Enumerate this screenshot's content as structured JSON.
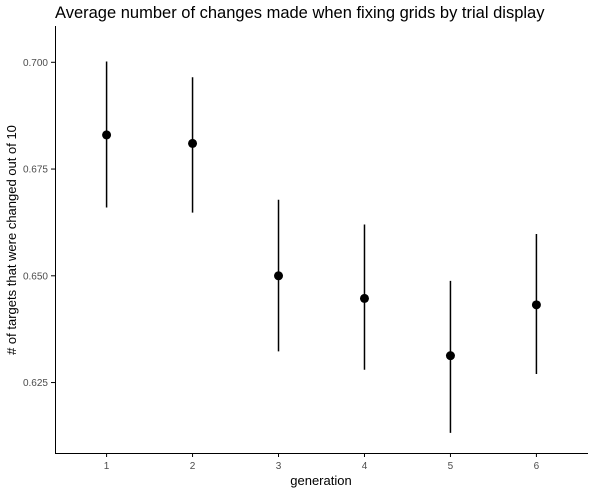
{
  "chart_data": {
    "type": "scatter",
    "title": "Average number of changes made when fixing grids by trial display",
    "xlabel": "generation",
    "ylabel": "# of targets that were changed out of 10",
    "x": [
      1,
      2,
      3,
      4,
      5,
      6
    ],
    "y": [
      0.683,
      0.681,
      0.65,
      0.6447,
      0.6313,
      0.6432
    ],
    "y_lower": [
      0.666,
      0.6648,
      0.6323,
      0.628,
      0.6132,
      0.627
    ],
    "y_upper": [
      0.7002,
      0.6965,
      0.6678,
      0.662,
      0.6488,
      0.6598
    ],
    "xlim": [
      0.4,
      6.6
    ],
    "ylim": [
      0.6085,
      0.7085
    ],
    "x_ticks": [
      "1",
      "2",
      "3",
      "4",
      "5",
      "6"
    ],
    "y_ticks": [
      "0.625",
      "0.650",
      "0.675",
      "0.700"
    ],
    "y_tick_values": [
      0.625,
      0.65,
      0.675,
      0.7
    ],
    "grid": false,
    "legend": "none",
    "colors": {
      "point": "#000000",
      "errorbar": "#000000",
      "axis": "#000000",
      "tick_text": "#4d4d4d"
    }
  }
}
